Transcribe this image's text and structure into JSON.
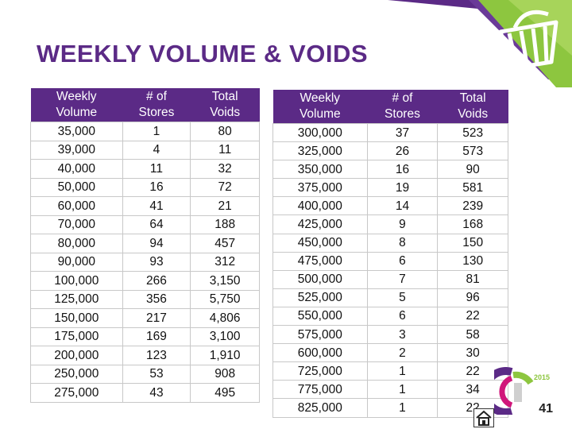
{
  "title": "WEEKLY VOLUME & VOIDS",
  "headers": {
    "col1": [
      "Weekly",
      "Volume"
    ],
    "col2": [
      "# of",
      "Stores"
    ],
    "col3": [
      "Total",
      "Voids"
    ]
  },
  "left_table": [
    [
      "35,000",
      "1",
      "80"
    ],
    [
      "39,000",
      "4",
      "11"
    ],
    [
      "40,000",
      "11",
      "32"
    ],
    [
      "50,000",
      "16",
      "72"
    ],
    [
      "60,000",
      "41",
      "21"
    ],
    [
      "70,000",
      "64",
      "188"
    ],
    [
      "80,000",
      "94",
      "457"
    ],
    [
      "90,000",
      "93",
      "312"
    ],
    [
      "100,000",
      "266",
      "3,150"
    ],
    [
      "125,000",
      "356",
      "5,750"
    ],
    [
      "150,000",
      "217",
      "4,806"
    ],
    [
      "175,000",
      "169",
      "3,100"
    ],
    [
      "200,000",
      "123",
      "1,910"
    ],
    [
      "250,000",
      "53",
      "908"
    ],
    [
      "275,000",
      "43",
      "495"
    ]
  ],
  "right_table": [
    [
      "300,000",
      "37",
      "523"
    ],
    [
      "325,000",
      "26",
      "573"
    ],
    [
      "350,000",
      "16",
      "90"
    ],
    [
      "375,000",
      "19",
      "581"
    ],
    [
      "400,000",
      "14",
      "239"
    ],
    [
      "425,000",
      "9",
      "168"
    ],
    [
      "450,000",
      "8",
      "150"
    ],
    [
      "475,000",
      "6",
      "130"
    ],
    [
      "500,000",
      "7",
      "81"
    ],
    [
      "525,000",
      "5",
      "96"
    ],
    [
      "550,000",
      "6",
      "22"
    ],
    [
      "575,000",
      "3",
      "58"
    ],
    [
      "600,000",
      "2",
      "30"
    ],
    [
      "725,000",
      "1",
      "22"
    ],
    [
      "775,000",
      "1",
      "34"
    ],
    [
      "825,000",
      "1",
      "22"
    ]
  ],
  "page_number": "41",
  "logo_year": "2015",
  "icons": [
    "shopping-basket-icon",
    "home-icon",
    "logo-icon"
  ],
  "colors": {
    "purple": "#5b2a86",
    "green": "#8dc63f",
    "magenta": "#d0167a"
  }
}
